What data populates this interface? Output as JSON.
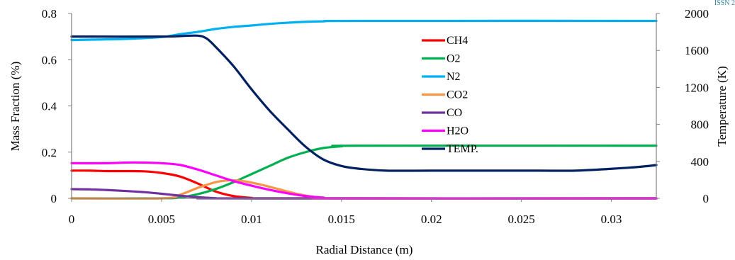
{
  "corner_label": "ISSN 2",
  "chart_data": {
    "type": "line",
    "xlabel": "Radial Distance (m)",
    "ylabel": "Mass Fraction (%)",
    "y2label": "Temperature (K)",
    "xlim": [
      0,
      0.0325
    ],
    "ylim": [
      0,
      0.8
    ],
    "y2lim": [
      0,
      2000
    ],
    "x_ticks": [
      "0",
      "0.005",
      "0.01",
      "0.015",
      "0.02",
      "0.025",
      "0.03"
    ],
    "x_tick_values": [
      0,
      0.005,
      0.01,
      0.015,
      0.02,
      0.025,
      0.03
    ],
    "y_ticks": [
      "0",
      "0.2",
      "0.4",
      "0.6",
      "0.8"
    ],
    "y_tick_values": [
      0,
      0.2,
      0.4,
      0.6,
      0.8
    ],
    "y2_ticks": [
      "0",
      "400",
      "800",
      "1200",
      "1600",
      "2000"
    ],
    "y2_tick_values": [
      0,
      400,
      800,
      1200,
      1600,
      2000
    ],
    "grid": false,
    "legend_position": "center-right",
    "series": [
      {
        "name": "CH4",
        "color": "#ff0000",
        "axis": "left",
        "points": [
          [
            0,
            0.12
          ],
          [
            0.001,
            0.12
          ],
          [
            0.002,
            0.118
          ],
          [
            0.003,
            0.118
          ],
          [
            0.004,
            0.117
          ],
          [
            0.005,
            0.11
          ],
          [
            0.006,
            0.095
          ],
          [
            0.007,
            0.065
          ],
          [
            0.008,
            0.03
          ],
          [
            0.009,
            0.01
          ],
          [
            0.01,
            0.002
          ],
          [
            0.011,
            0
          ],
          [
            0.0325,
            0
          ]
        ]
      },
      {
        "name": "O2",
        "color": "#00b050",
        "axis": "left",
        "points": [
          [
            0,
            0
          ],
          [
            0.005,
            0
          ],
          [
            0.006,
            0.004
          ],
          [
            0.007,
            0.018
          ],
          [
            0.008,
            0.04
          ],
          [
            0.009,
            0.07
          ],
          [
            0.01,
            0.105
          ],
          [
            0.011,
            0.14
          ],
          [
            0.012,
            0.175
          ],
          [
            0.013,
            0.2
          ],
          [
            0.014,
            0.218
          ],
          [
            0.015,
            0.225
          ],
          [
            0.016,
            0.228
          ],
          [
            0.0325,
            0.228
          ]
        ]
      },
      {
        "name": "N2",
        "color": "#00b0f0",
        "axis": "left",
        "points": [
          [
            0,
            0.685
          ],
          [
            0.003,
            0.69
          ],
          [
            0.005,
            0.698
          ],
          [
            0.006,
            0.71
          ],
          [
            0.007,
            0.72
          ],
          [
            0.008,
            0.733
          ],
          [
            0.009,
            0.742
          ],
          [
            0.01,
            0.748
          ],
          [
            0.011,
            0.755
          ],
          [
            0.012,
            0.76
          ],
          [
            0.013,
            0.764
          ],
          [
            0.014,
            0.766
          ],
          [
            0.016,
            0.768
          ],
          [
            0.0325,
            0.768
          ]
        ]
      },
      {
        "name": "CO2",
        "color": "#f79646",
        "axis": "left",
        "points": [
          [
            0,
            0
          ],
          [
            0.005,
            0
          ],
          [
            0.006,
            0.015
          ],
          [
            0.007,
            0.045
          ],
          [
            0.008,
            0.07
          ],
          [
            0.0088,
            0.078
          ],
          [
            0.0095,
            0.075
          ],
          [
            0.0105,
            0.06
          ],
          [
            0.0115,
            0.04
          ],
          [
            0.0125,
            0.02
          ],
          [
            0.0135,
            0.006
          ],
          [
            0.0145,
            0
          ],
          [
            0.0325,
            0
          ]
        ]
      },
      {
        "name": "CO",
        "color": "#7030a0",
        "axis": "left",
        "points": [
          [
            0,
            0.04
          ],
          [
            0.001,
            0.039
          ],
          [
            0.002,
            0.036
          ],
          [
            0.003,
            0.032
          ],
          [
            0.004,
            0.027
          ],
          [
            0.005,
            0.02
          ],
          [
            0.006,
            0.012
          ],
          [
            0.007,
            0.005
          ],
          [
            0.008,
            0.001
          ],
          [
            0.009,
            0
          ],
          [
            0.0325,
            0
          ]
        ]
      },
      {
        "name": "H2O",
        "color": "#ff00ff",
        "axis": "left",
        "points": [
          [
            0,
            0.152
          ],
          [
            0.002,
            0.152
          ],
          [
            0.003,
            0.155
          ],
          [
            0.004,
            0.155
          ],
          [
            0.005,
            0.152
          ],
          [
            0.006,
            0.145
          ],
          [
            0.007,
            0.125
          ],
          [
            0.008,
            0.1
          ],
          [
            0.009,
            0.075
          ],
          [
            0.01,
            0.055
          ],
          [
            0.011,
            0.037
          ],
          [
            0.012,
            0.022
          ],
          [
            0.013,
            0.01
          ],
          [
            0.014,
            0.003
          ],
          [
            0.015,
            0
          ],
          [
            0.0325,
            0
          ]
        ]
      },
      {
        "name": "TEMP.",
        "color": "#002060",
        "axis": "right",
        "points": [
          [
            0,
            1750
          ],
          [
            0.005,
            1750
          ],
          [
            0.006,
            1755
          ],
          [
            0.007,
            1760
          ],
          [
            0.0075,
            1730
          ],
          [
            0.008,
            1640
          ],
          [
            0.009,
            1430
          ],
          [
            0.01,
            1180
          ],
          [
            0.011,
            950
          ],
          [
            0.012,
            750
          ],
          [
            0.013,
            560
          ],
          [
            0.014,
            420
          ],
          [
            0.015,
            350
          ],
          [
            0.016,
            320
          ],
          [
            0.0175,
            300
          ],
          [
            0.02,
            300
          ],
          [
            0.0255,
            300
          ],
          [
            0.028,
            300
          ],
          [
            0.03,
            320
          ],
          [
            0.0315,
            340
          ],
          [
            0.0325,
            360
          ]
        ]
      }
    ]
  }
}
